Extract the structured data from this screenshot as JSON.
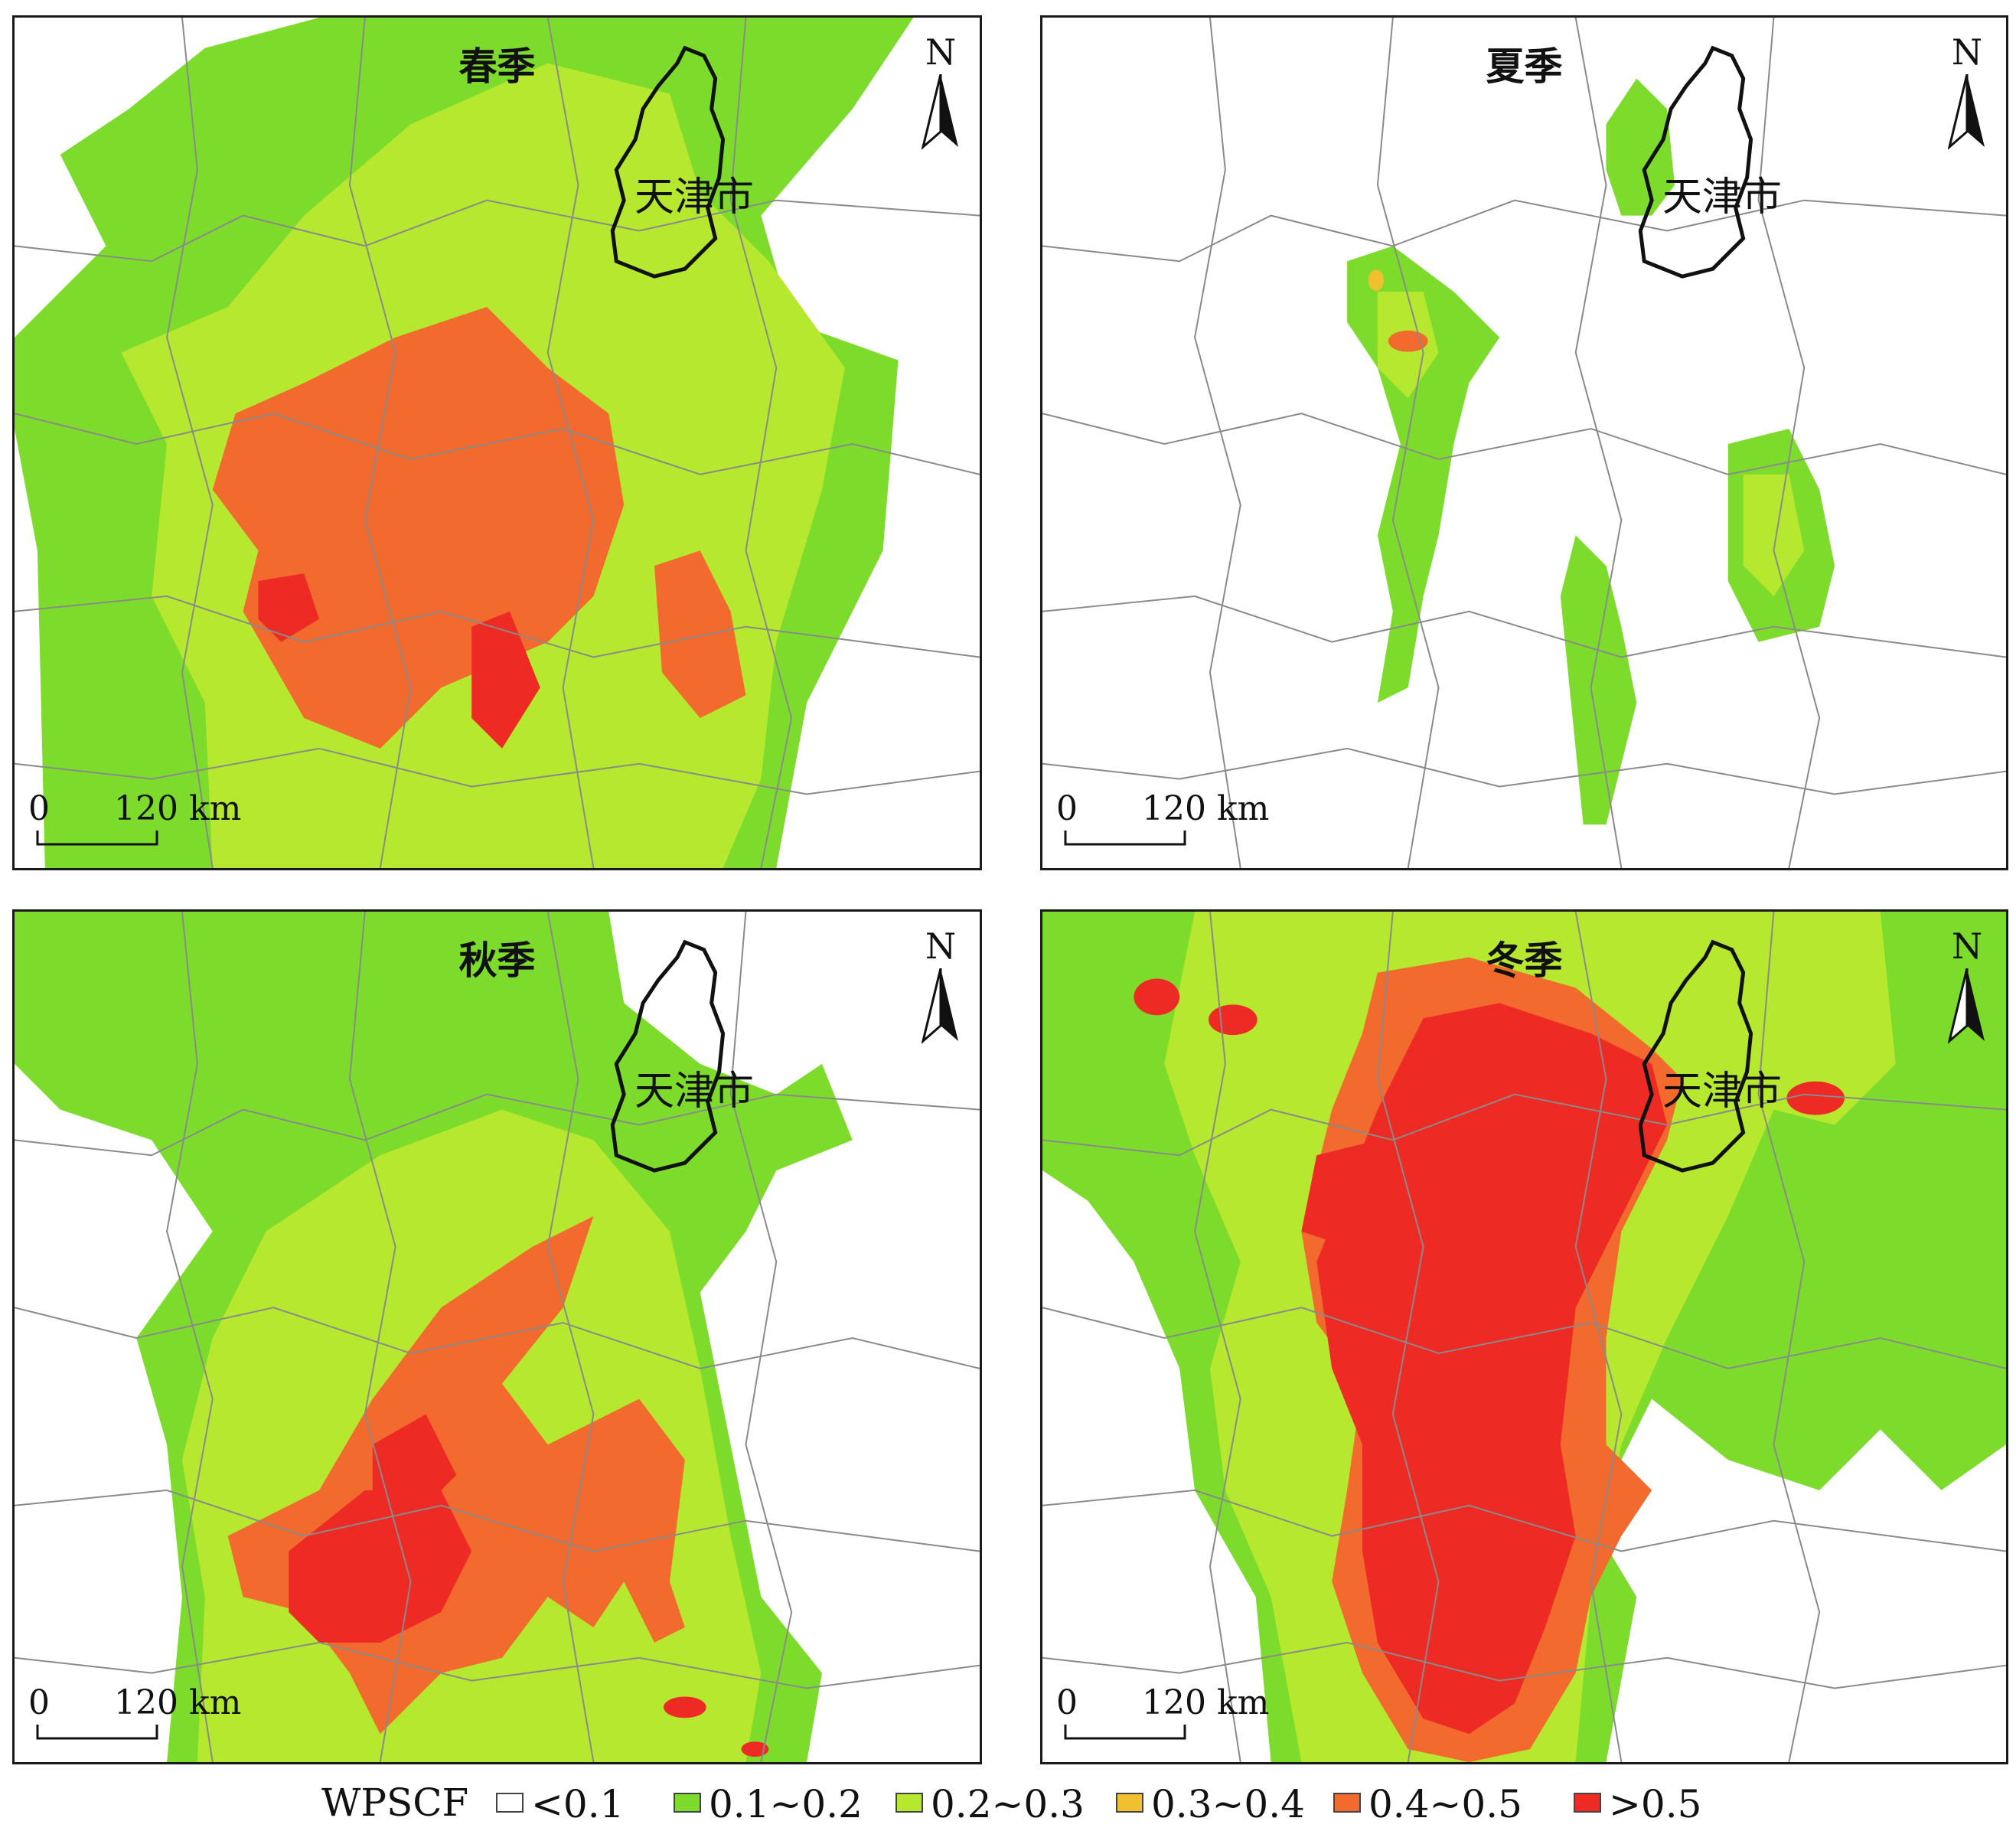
{
  "panels": [
    {
      "title": "春季",
      "city_label": "天津市",
      "north": "N",
      "scale_zero": "0",
      "scale_dist": "120 km"
    },
    {
      "title": "夏季",
      "city_label": "天津市",
      "north": "N",
      "scale_zero": "0",
      "scale_dist": "120 km"
    },
    {
      "title": "秋季",
      "city_label": "天津市",
      "north": "N",
      "scale_zero": "0",
      "scale_dist": "120 km"
    },
    {
      "title": "冬季",
      "city_label": "天津市",
      "north": "N",
      "scale_zero": "0",
      "scale_dist": "120 km"
    }
  ],
  "legend": {
    "title": "WPSCF",
    "items": [
      {
        "label": "<0.1",
        "color": "#ffffff"
      },
      {
        "label": "0.1~0.2",
        "color": "#7ddc2b"
      },
      {
        "label": "0.2~0.3",
        "color": "#b5e82e"
      },
      {
        "label": "0.3~0.4",
        "color": "#f0c030"
      },
      {
        "label": "0.4~0.5",
        "color": "#f26a2e"
      },
      {
        "label": ">0.5",
        "color": "#ee2a25"
      }
    ]
  }
}
